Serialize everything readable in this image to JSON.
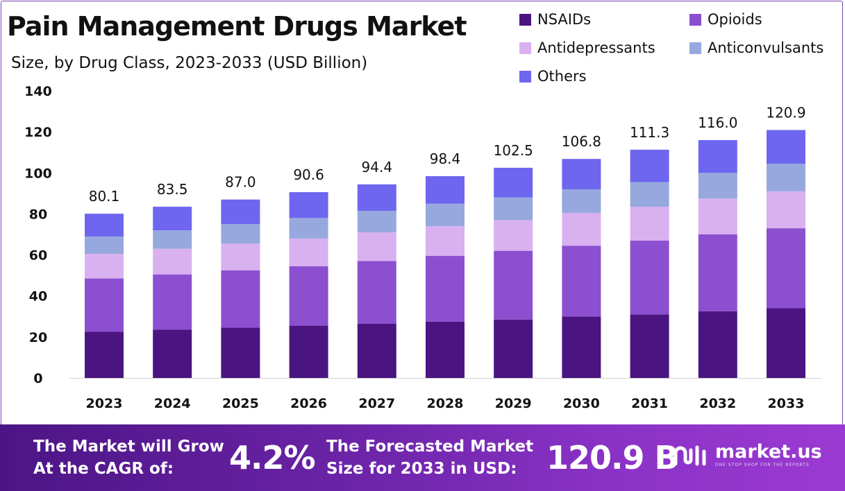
{
  "chart_data": {
    "type": "bar",
    "stacked": true,
    "title": "Pain Management Drugs Market",
    "subtitle": "Size, by Drug Class, 2023-2033 (USD Billion)",
    "categories": [
      "2023",
      "2024",
      "2025",
      "2026",
      "2027",
      "2028",
      "2029",
      "2030",
      "2031",
      "2032",
      "2033"
    ],
    "series": [
      {
        "name": "NSAIDs",
        "color": "#4a1580",
        "values": [
          22.5,
          23.5,
          24.5,
          25.5,
          26.5,
          27.5,
          28.5,
          30.0,
          31.0,
          32.5,
          34.0
        ]
      },
      {
        "name": "Opioids",
        "color": "#8c4fd0",
        "values": [
          26.0,
          27.0,
          28.0,
          29.0,
          30.5,
          32.0,
          33.5,
          34.5,
          36.0,
          37.5,
          39.0
        ]
      },
      {
        "name": "Antidepressants",
        "color": "#d9b0f0",
        "values": [
          12.0,
          12.5,
          13.0,
          13.5,
          14.0,
          14.5,
          15.0,
          16.0,
          16.5,
          17.5,
          18.0
        ]
      },
      {
        "name": "Anticonvulsants",
        "color": "#96a8dd",
        "values": [
          8.5,
          9.0,
          9.5,
          10.0,
          10.5,
          11.0,
          11.0,
          11.5,
          12.0,
          12.5,
          13.5
        ]
      },
      {
        "name": "Others",
        "color": "#6e66ef",
        "values": [
          11.1,
          11.5,
          12.0,
          12.6,
          12.9,
          13.4,
          14.5,
          14.8,
          15.8,
          16.0,
          16.4
        ]
      }
    ],
    "totals": [
      "80.1",
      "83.5",
      "87.0",
      "90.6",
      "94.4",
      "98.4",
      "102.5",
      "106.8",
      "111.3",
      "116.0",
      "120.9"
    ],
    "ylim": [
      0,
      140
    ],
    "yticks": [
      0,
      20,
      40,
      60,
      80,
      100,
      120,
      140
    ],
    "xlabel": "",
    "ylabel": "",
    "grid": false,
    "legend_position": "top-right"
  },
  "footer": {
    "cagr_label_line1": "The Market will Grow",
    "cagr_label_line2": "At the CAGR of:",
    "cagr_value": "4.2%",
    "forecast_label_line1": "The Forecasted Market",
    "forecast_label_line2": "Size for 2033 in USD:",
    "forecast_value": "120.9 B",
    "brand": "market.us",
    "brand_tagline": "ONE STOP SHOP FOR THE REPORTS"
  }
}
